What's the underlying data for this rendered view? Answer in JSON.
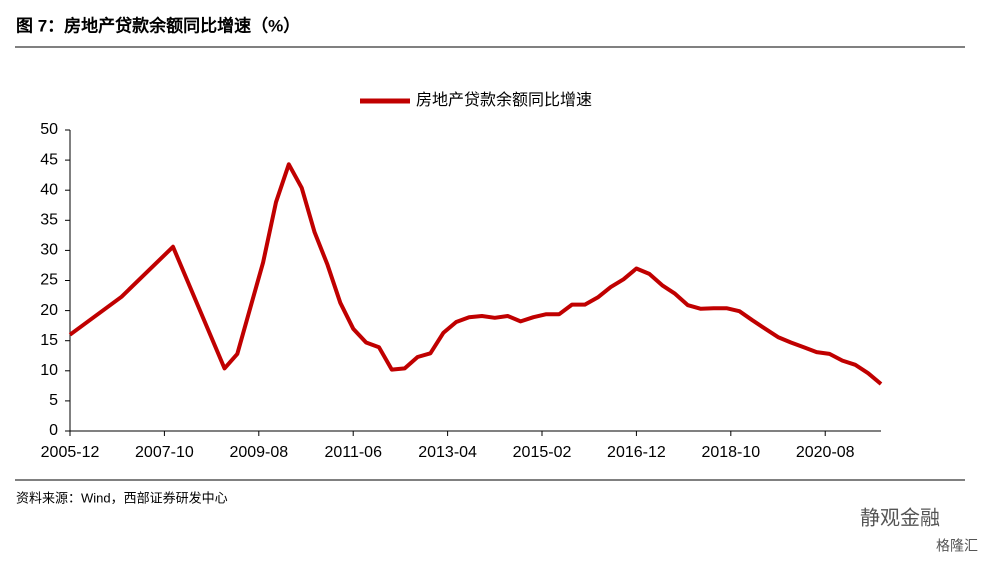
{
  "chart_data": {
    "type": "line",
    "title": "图 7：房地产贷款余额同比增速（%）",
    "source": "资料来源：Wind，西部证券研发中心",
    "watermark": [
      "静观金融",
      "格隆汇"
    ],
    "x": [
      "2005-12",
      "2006-12",
      "2007-12",
      "2008-12",
      "2009-03",
      "2009-09",
      "2009-12",
      "2010-03",
      "2010-06",
      "2010-09",
      "2010-12",
      "2011-03",
      "2011-06",
      "2011-09",
      "2011-12",
      "2012-03",
      "2012-06",
      "2012-09",
      "2012-12",
      "2013-03",
      "2013-06",
      "2013-09",
      "2013-12",
      "2014-03",
      "2014-06",
      "2014-09",
      "2014-12",
      "2015-03",
      "2015-06",
      "2015-09",
      "2015-12",
      "2016-03",
      "2016-06",
      "2016-09",
      "2016-12",
      "2017-03",
      "2017-06",
      "2017-09",
      "2017-12",
      "2018-03",
      "2018-06",
      "2018-09",
      "2018-12",
      "2019-03",
      "2019-06",
      "2019-09",
      "2019-12",
      "2020-03",
      "2020-06",
      "2020-09",
      "2020-12",
      "2021-03",
      "2021-06",
      "2021-09"
    ],
    "series": [
      {
        "name": "房地产贷款余额同比增速",
        "color": "#c00000",
        "values": [
          16.0,
          22.3,
          30.6,
          10.4,
          12.8,
          28.0,
          38.0,
          44.3,
          40.4,
          33.0,
          27.6,
          21.3,
          17.0,
          14.7,
          13.9,
          10.2,
          10.4,
          12.3,
          12.9,
          16.3,
          18.1,
          18.9,
          19.1,
          18.8,
          19.1,
          18.2,
          18.9,
          19.4,
          19.4,
          21.0,
          21.0,
          22.2,
          23.9,
          25.2,
          27.0,
          26.1,
          24.2,
          22.8,
          20.9,
          20.3,
          20.4,
          20.4,
          19.9,
          18.4,
          17.0,
          15.6,
          14.7,
          13.9,
          13.1,
          12.8,
          11.7,
          11.0,
          9.6,
          7.8
        ]
      }
    ],
    "xlim": [
      "2005-12",
      "2021-09"
    ],
    "xticks": [
      "2005-12",
      "2007-10",
      "2009-08",
      "2011-06",
      "2013-04",
      "2015-02",
      "2016-12",
      "2018-10",
      "2020-08"
    ],
    "ylim": [
      0,
      50
    ],
    "yticks": [
      0,
      5,
      10,
      15,
      20,
      25,
      30,
      35,
      40,
      45,
      50
    ],
    "legend": "top"
  }
}
